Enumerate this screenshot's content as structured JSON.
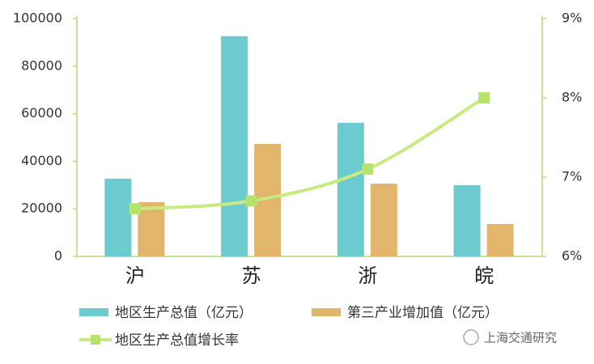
{
  "chart_data": {
    "type": "bar",
    "categories": [
      "沪",
      "苏",
      "浙",
      "皖"
    ],
    "series": [
      {
        "name": "地区生产总值（亿元）",
        "type": "bar",
        "color": "#6ccbcf",
        "values": [
          32700,
          92600,
          56200,
          30000
        ]
      },
      {
        "name": "第三产业增加值（亿元）",
        "type": "bar",
        "color": "#e2b56c",
        "values": [
          22800,
          47300,
          30600,
          13600
        ]
      },
      {
        "name": "地区生产总值增长率",
        "type": "line",
        "axis": "y2",
        "color": "#c8ea80",
        "values": [
          6.6,
          6.7,
          7.1,
          8.0
        ]
      }
    ],
    "ylim": [
      0,
      100000
    ],
    "yticks": [
      0,
      20000,
      40000,
      60000,
      80000,
      100000
    ],
    "y2lim": [
      6,
      9
    ],
    "y2ticks": [
      {
        "value": 6,
        "label": "6%"
      },
      {
        "value": 7,
        "label": "7%"
      },
      {
        "value": 8,
        "label": "8%"
      },
      {
        "value": 9,
        "label": "9%"
      }
    ],
    "grid": false,
    "legend": "bottom",
    "watermark": "上海交通研究"
  }
}
